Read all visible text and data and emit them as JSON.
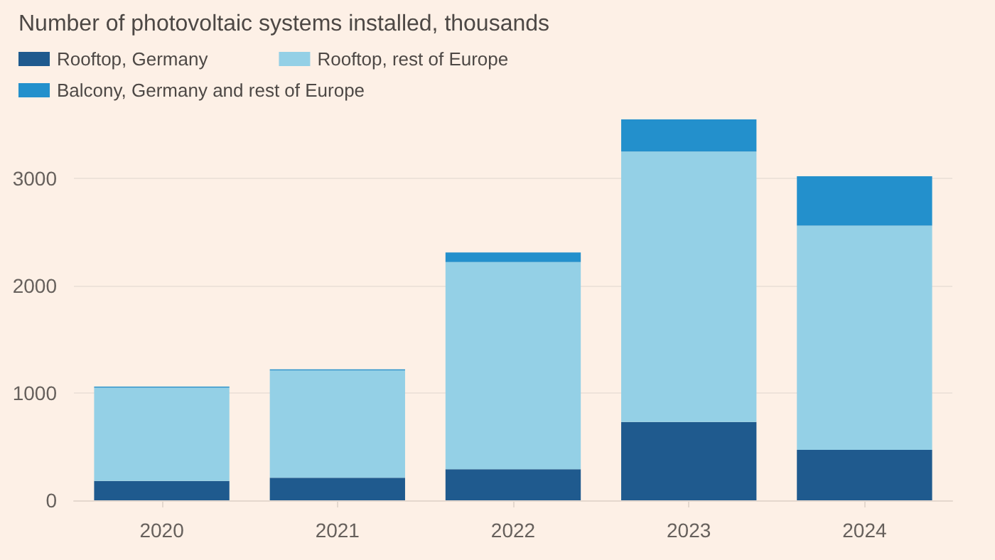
{
  "chart_data": {
    "type": "bar",
    "title": "Number of photovoltaic systems installed, thousands",
    "categories": [
      "2020",
      "2021",
      "2022",
      "2023",
      "2024"
    ],
    "stacked": true,
    "series": [
      {
        "name": "Rooftop, Germany",
        "color": "#1f5a8e",
        "values": [
          180,
          210,
          290,
          730,
          470
        ]
      },
      {
        "name": "Rooftop, rest of Europe",
        "color": "#94d0e6",
        "values": [
          870,
          1000,
          1930,
          2520,
          2090
        ]
      },
      {
        "name": "Balcony, Germany and rest of Europe",
        "color": "#2390cc",
        "values": [
          10,
          10,
          90,
          300,
          460
        ]
      }
    ],
    "ylim": [
      0,
      3550
    ],
    "yticks": [
      0,
      1000,
      2000,
      3000
    ],
    "grid": "y",
    "legend": "top left"
  }
}
